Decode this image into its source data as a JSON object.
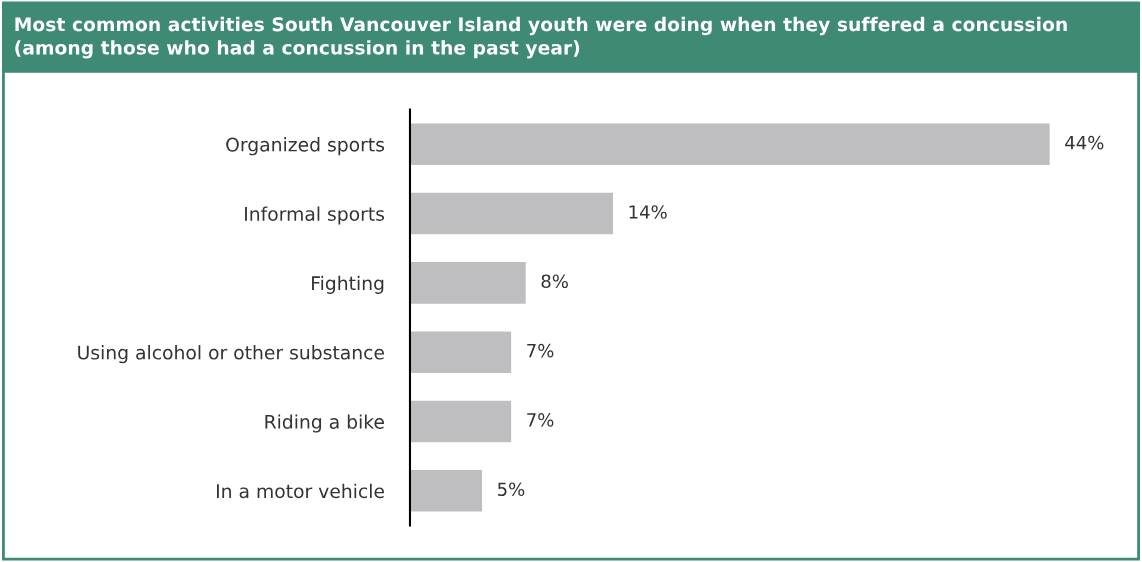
{
  "chart_data": {
    "type": "bar",
    "orientation": "horizontal",
    "title": "Most common activities South Vancouver Island youth were doing when they suffered a concussion\n(among those who had a concussion in the past year)",
    "categories": [
      "Organized sports",
      "Informal sports",
      "Fighting",
      "Using alcohol or other substance",
      "Riding a bike",
      "In a motor vehicle"
    ],
    "values": [
      44,
      14,
      8,
      7,
      7,
      5
    ],
    "value_labels": [
      "44%",
      "14%",
      "8%",
      "7%",
      "7%",
      "5%"
    ],
    "color": "#bebec0",
    "grid": false,
    "legend": false
  }
}
